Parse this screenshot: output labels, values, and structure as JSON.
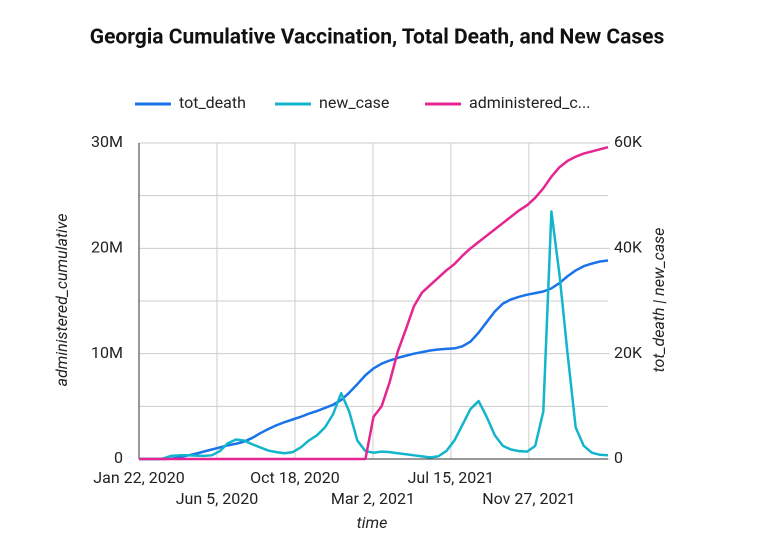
{
  "chart_data": {
    "type": "line",
    "title": "Georgia Cumulative Vaccination, Total Death, and New Cases",
    "x_label": "time",
    "y_label": "administered_cumulative",
    "y2_label": "tot_death | new_case",
    "x": [
      "2020-01-22",
      "2020-02-05",
      "2020-02-19",
      "2020-03-04",
      "2020-03-18",
      "2020-04-01",
      "2020-04-15",
      "2020-04-29",
      "2020-05-13",
      "2020-05-27",
      "2020-06-10",
      "2020-06-24",
      "2020-07-08",
      "2020-07-22",
      "2020-08-05",
      "2020-08-19",
      "2020-09-02",
      "2020-09-16",
      "2020-09-30",
      "2020-10-14",
      "2020-10-28",
      "2020-11-11",
      "2020-11-25",
      "2020-12-09",
      "2020-12-23",
      "2021-01-06",
      "2021-01-20",
      "2021-02-03",
      "2021-02-17",
      "2021-03-03",
      "2021-03-17",
      "2021-03-31",
      "2021-04-14",
      "2021-04-28",
      "2021-05-12",
      "2021-05-26",
      "2021-06-09",
      "2021-06-23",
      "2021-07-07",
      "2021-07-21",
      "2021-08-04",
      "2021-08-18",
      "2021-09-01",
      "2021-09-15",
      "2021-09-29",
      "2021-10-13",
      "2021-10-27",
      "2021-11-10",
      "2021-11-24",
      "2021-12-08",
      "2021-12-22",
      "2022-01-05",
      "2022-01-19",
      "2022-02-02",
      "2022-02-16",
      "2022-03-02",
      "2022-03-16",
      "2022-03-30",
      "2022-04-13"
    ],
    "xlim": [
      "2020-01-22",
      "2022-04-13"
    ],
    "xticks": [
      {
        "value": "2020-01-22",
        "label": "Jan 22, 2020"
      },
      {
        "value": "2020-06-05",
        "label": "Jun 5, 2020"
      },
      {
        "value": "2020-10-18",
        "label": "Oct 18, 2020"
      },
      {
        "value": "2021-03-02",
        "label": "Mar 2, 2021"
      },
      {
        "value": "2021-07-15",
        "label": "Jul 15, 2021"
      },
      {
        "value": "2021-11-27",
        "label": "Nov 27, 2021"
      }
    ],
    "ylim": [
      0,
      30000000
    ],
    "yticks": [
      0,
      {
        "value": 10000000,
        "label": "10M"
      },
      {
        "value": 20000000,
        "label": "20M"
      },
      {
        "value": 30000000,
        "label": "30M"
      }
    ],
    "y2lim": [
      0,
      60000
    ],
    "y2ticks": [
      0,
      {
        "value": 20000,
        "label": "20K"
      },
      {
        "value": 40000,
        "label": "40K"
      },
      {
        "value": 60000,
        "label": "60K"
      }
    ],
    "grid": true,
    "legend": "top",
    "series": [
      {
        "name": "tot_death",
        "color": "#1a73e8",
        "axis": "y2",
        "values": [
          0,
          0,
          0,
          0,
          50,
          300,
          650,
          1000,
          1400,
          1800,
          2200,
          2600,
          2900,
          3300,
          4000,
          4900,
          5700,
          6400,
          7000,
          7500,
          8000,
          8600,
          9100,
          9700,
          10300,
          11200,
          12600,
          14200,
          15900,
          17200,
          18100,
          18700,
          19200,
          19600,
          20000,
          20300,
          20600,
          20800,
          20900,
          21000,
          21400,
          22300,
          24000,
          26000,
          28000,
          29500,
          30300,
          30800,
          31200,
          31500,
          31800,
          32400,
          33400,
          34700,
          35800,
          36600,
          37100,
          37500,
          37700
        ]
      },
      {
        "name": "new_case",
        "color": "#12b5cb",
        "axis": "y2",
        "values": [
          0,
          0,
          0,
          100,
          600,
          700,
          700,
          650,
          600,
          700,
          1500,
          3000,
          3700,
          3500,
          2800,
          2200,
          1600,
          1300,
          1100,
          1300,
          2200,
          3500,
          4500,
          6000,
          8500,
          12500,
          9000,
          3500,
          1500,
          1200,
          1400,
          1300,
          1100,
          900,
          700,
          500,
          300,
          500,
          1500,
          3500,
          6500,
          9500,
          11000,
          8000,
          4500,
          2500,
          1800,
          1500,
          1400,
          2500,
          9000,
          47000,
          35000,
          20000,
          6000,
          2500,
          1200,
          800,
          700
        ]
      },
      {
        "name": "administered_c...",
        "color": "#e52592",
        "axis": "y",
        "values": [
          0,
          0,
          0,
          0,
          0,
          0,
          0,
          0,
          0,
          0,
          0,
          0,
          0,
          0,
          0,
          0,
          0,
          0,
          0,
          0,
          0,
          0,
          0,
          0,
          0,
          0,
          0,
          0,
          0,
          4000000,
          5000000,
          7300000,
          10200000,
          12300000,
          14500000,
          15800000,
          16500000,
          17200000,
          17900000,
          18500000,
          19300000,
          20000000,
          20600000,
          21200000,
          21800000,
          22400000,
          23000000,
          23600000,
          24100000,
          24800000,
          25700000,
          26800000,
          27700000,
          28300000,
          28700000,
          29000000,
          29200000,
          29400000,
          29600000
        ]
      }
    ]
  }
}
